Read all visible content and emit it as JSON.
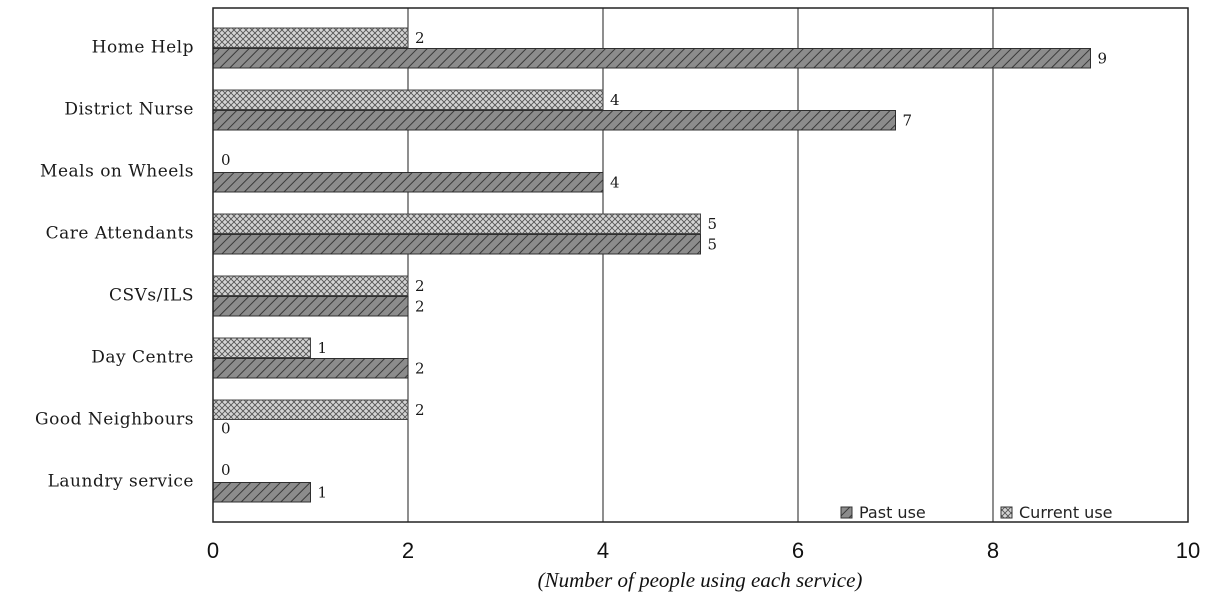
{
  "chart_data": {
    "type": "bar",
    "orientation": "horizontal",
    "categories": [
      "Home Help",
      "District Nurse",
      "Meals on Wheels",
      "Care Attendants",
      "CSVs/ILS",
      "Day Centre",
      "Good Neighbours",
      "Laundry service"
    ],
    "series": [
      {
        "name": "Current use",
        "values": [
          2,
          4,
          0,
          5,
          2,
          1,
          2,
          0
        ],
        "pattern": "crosshatch"
      },
      {
        "name": "Past use",
        "values": [
          9,
          7,
          4,
          5,
          2,
          2,
          0,
          1
        ],
        "pattern": "diagonal"
      }
    ],
    "xlabel": "(Number of people using each service)",
    "ylabel": "",
    "xlim": [
      0,
      10
    ],
    "xticks": [
      "0",
      "2",
      "4",
      "6",
      "8",
      "10"
    ],
    "grid": "vertical",
    "legend": {
      "placement": "bottom-right",
      "order": [
        "Past use",
        "Current use"
      ]
    }
  },
  "colors": {
    "current_fill": "#d4d4d4",
    "current_line": "#555555",
    "past_fill": "#8a8a8a",
    "past_line": "#3c3c3c",
    "frame": "#222222"
  }
}
